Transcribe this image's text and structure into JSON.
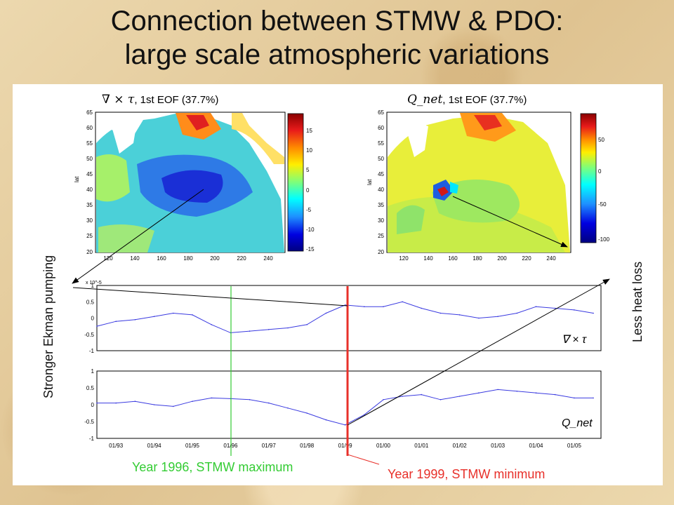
{
  "slide": {
    "title_line1": "Connection between STMW & PDO:",
    "title_line2": "large scale atmospheric variations",
    "left_side_label": "Stronger Ekman pumping",
    "right_side_label": "Less heat loss",
    "annotation_1996": "Year 1996, STMW maximum",
    "annotation_1999": "Year 1999, STMW minimum",
    "color_1996": "#33cc33",
    "color_1999": "#e8302a"
  },
  "maps": [
    {
      "field_symbol": "∇ × τ",
      "title_suffix": ", 1st EOF (37.7%)",
      "ylabel": "lat",
      "x_ticks": [
        "120",
        "140",
        "160",
        "180",
        "200",
        "220",
        "240"
      ],
      "y_ticks": [
        "20",
        "25",
        "30",
        "35",
        "40",
        "45",
        "50",
        "55",
        "60",
        "65"
      ],
      "colorbar_ticks": [
        "15",
        "10",
        "5",
        "0",
        "-5",
        "-10",
        "-15"
      ]
    },
    {
      "field_symbol": "Q_net",
      "title_suffix": ", 1st EOF (37.7%)",
      "ylabel": "lat",
      "x_ticks": [
        "120",
        "140",
        "160",
        "180",
        "200",
        "220",
        "240"
      ],
      "y_ticks": [
        "20",
        "25",
        "30",
        "35",
        "40",
        "45",
        "50",
        "55",
        "60",
        "65"
      ],
      "colorbar_ticks": [
        "50",
        "0",
        "-50",
        "-100"
      ]
    }
  ],
  "chart_data": [
    {
      "type": "line",
      "series_label": "∇ × τ",
      "scale_label": "x 10^-5",
      "ylim": [
        -1,
        1
      ],
      "y_ticks": [
        "1",
        "0.5",
        "0",
        "-0.5",
        "-1"
      ],
      "x": [
        1992.5,
        1993,
        1993.5,
        1994,
        1994.5,
        1995,
        1995.5,
        1996,
        1996.5,
        1997,
        1997.5,
        1998,
        1998.5,
        1999,
        1999.5,
        2000,
        2000.5,
        2001,
        2001.5,
        2002,
        2002.5,
        2003,
        2003.5,
        2004,
        2004.5,
        2005,
        2005.5
      ],
      "values": [
        -0.25,
        -0.1,
        -0.05,
        0.05,
        0.15,
        0.1,
        -0.2,
        -0.45,
        -0.4,
        -0.35,
        -0.3,
        -0.2,
        0.15,
        0.4,
        0.35,
        0.35,
        0.5,
        0.3,
        0.15,
        0.1,
        0,
        0.05,
        0.15,
        0.35,
        0.3,
        0.25,
        0.15
      ],
      "color": "#3a3ae0"
    },
    {
      "type": "line",
      "series_label": "Q_net",
      "ylim": [
        -1,
        1
      ],
      "y_ticks": [
        "1",
        "0.5",
        "0",
        "-0.5",
        "-1"
      ],
      "x_ticks": [
        "01/93",
        "01/94",
        "01/95",
        "01/96",
        "01/97",
        "01/98",
        "01/99",
        "01/00",
        "01/01",
        "01/02",
        "01/03",
        "01/04",
        "01/05"
      ],
      "x": [
        1992.5,
        1993,
        1993.5,
        1994,
        1994.5,
        1995,
        1995.5,
        1996,
        1996.5,
        1997,
        1997.5,
        1998,
        1998.5,
        1999,
        1999.5,
        2000,
        2000.5,
        2001,
        2001.5,
        2002,
        2002.5,
        2003,
        2003.5,
        2004,
        2004.5,
        2005,
        2005.5
      ],
      "values": [
        0.05,
        0.05,
        0.1,
        0,
        -0.05,
        0.1,
        0.2,
        0.18,
        0.15,
        0.05,
        -0.1,
        -0.25,
        -0.45,
        -0.6,
        -0.3,
        0.15,
        0.25,
        0.3,
        0.15,
        0.25,
        0.35,
        0.45,
        0.4,
        0.35,
        0.3,
        0.2,
        0.2
      ],
      "color": "#3a3ae0"
    }
  ]
}
